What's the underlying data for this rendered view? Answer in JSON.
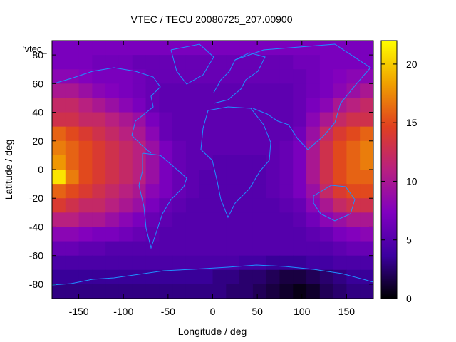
{
  "chart_data": {
    "type": "heatmap",
    "title": "VTEC / TECU 20080725_207.00900",
    "xlabel": "Longitude / deg",
    "ylabel": "Latitude / deg",
    "xlim": [
      -180,
      180
    ],
    "ylim": [
      -90,
      90
    ],
    "x_ticks": [
      -150,
      -100,
      -50,
      0,
      50,
      100,
      150
    ],
    "y_ticks": [
      -80,
      -60,
      -40,
      -20,
      0,
      20,
      40,
      60,
      80
    ],
    "x_tick_labels": [
      "-150",
      "-100",
      "-50",
      "0",
      "50",
      "100",
      "150"
    ],
    "y_tick_labels": [
      "-80",
      "-60",
      "-40",
      "-20",
      "0",
      "20",
      "40",
      "60",
      "80"
    ],
    "colorbar": {
      "range": [
        0,
        22
      ],
      "ticks": [
        0,
        5,
        10,
        15,
        20
      ],
      "tick_labels": [
        "0",
        "5",
        "10",
        "15",
        "20"
      ],
      "palette": [
        "#000000",
        "#3c00a0",
        "#8000c0",
        "#b82080",
        "#e04020",
        "#f0a000",
        "#ffff00"
      ]
    },
    "legend": {
      "entries": [
        "'vtec_"
      ],
      "placement": "top-left"
    },
    "grid": false,
    "overlay": "coastlines",
    "coastline_color": "#1e90ff",
    "lat_rows": [
      85,
      75,
      65,
      55,
      45,
      35,
      25,
      15,
      5,
      -5,
      -15,
      -25,
      -35,
      -45,
      -55,
      -65,
      -75,
      -85
    ],
    "lon_cols": [
      -172.5,
      -157.5,
      -142.5,
      -127.5,
      -112.5,
      -97.5,
      -82.5,
      -67.5,
      -52.5,
      -37.5,
      -22.5,
      -7.5,
      7.5,
      22.5,
      37.5,
      52.5,
      67.5,
      82.5,
      97.5,
      112.5,
      127.5,
      142.5,
      157.5,
      172.5
    ],
    "values": [
      [
        7,
        7,
        7,
        7,
        7,
        7,
        7,
        7,
        7,
        7,
        7,
        7,
        7,
        7,
        7,
        7,
        7,
        7,
        7,
        7,
        7,
        7,
        7,
        7
      ],
      [
        7,
        7,
        7,
        6.5,
        6.5,
        6.5,
        6,
        6,
        6,
        6,
        6,
        6,
        6,
        6,
        6,
        6,
        6,
        6,
        6.5,
        6.5,
        7,
        7,
        7,
        7
      ],
      [
        8,
        8,
        7.5,
        7,
        7,
        7,
        6.5,
        6,
        6,
        6,
        6,
        6,
        6,
        6,
        6,
        6,
        6,
        6,
        6,
        6.5,
        7,
        7.5,
        8,
        8
      ],
      [
        10,
        10,
        9,
        8,
        7.5,
        7,
        6.5,
        6,
        5.5,
        5.5,
        5.5,
        5.5,
        5.5,
        5.5,
        5.5,
        5.5,
        5.5,
        5.5,
        6,
        6.5,
        7,
        8,
        9,
        10
      ],
      [
        12,
        12,
        11,
        10,
        9,
        8,
        7,
        6,
        5.5,
        5.5,
        5.5,
        5.5,
        5.5,
        5.5,
        5.5,
        5.5,
        5.5,
        5.5,
        6,
        7,
        8,
        10,
        11,
        12
      ],
      [
        13,
        13,
        12,
        12,
        11,
        10,
        9,
        7,
        6,
        5.5,
        5.5,
        5.5,
        5.5,
        5.5,
        5.5,
        5.5,
        5.5,
        5.5,
        6,
        8,
        10,
        12,
        13,
        13
      ],
      [
        16,
        15,
        14,
        13,
        12,
        11,
        10,
        8,
        6,
        5.5,
        5.5,
        5.5,
        5.5,
        5.5,
        5.5,
        5.5,
        5.5,
        5.5,
        6.5,
        9,
        12,
        14,
        15,
        16
      ],
      [
        17,
        16,
        15,
        14,
        13,
        12,
        11,
        9,
        7,
        6,
        5.5,
        5.5,
        5.5,
        5.5,
        5.5,
        5.5,
        5.5,
        6,
        7,
        10,
        13,
        15,
        16,
        17
      ],
      [
        18,
        16,
        15,
        14,
        13,
        12,
        11,
        9,
        7,
        6,
        5.5,
        5.5,
        5,
        5,
        5,
        5,
        5.5,
        6,
        7,
        10,
        13,
        15,
        16,
        17
      ],
      [
        21,
        17,
        15,
        14,
        13,
        12,
        11,
        9,
        7,
        6,
        5.5,
        5,
        5,
        5,
        5,
        5,
        5.5,
        6,
        7,
        10,
        13,
        15,
        16,
        16
      ],
      [
        16,
        15,
        14,
        13,
        12,
        11,
        10,
        8,
        7,
        6,
        5.5,
        5,
        5,
        5,
        5,
        5,
        5.5,
        6,
        7,
        9,
        12,
        14,
        15,
        15
      ],
      [
        14,
        13,
        12,
        12,
        11,
        10,
        9,
        7,
        6,
        5.5,
        5,
        5,
        5,
        5,
        5,
        5,
        5,
        5.5,
        6,
        8,
        10,
        12,
        13,
        13
      ],
      [
        11,
        11,
        10,
        10,
        9,
        8,
        7,
        6,
        5.5,
        5,
        5,
        5,
        5,
        5,
        5,
        5,
        5,
        5,
        5.5,
        6.5,
        8,
        9,
        10,
        10
      ],
      [
        8,
        8,
        7.5,
        7,
        7,
        6.5,
        6,
        5.5,
        5,
        5,
        5,
        5,
        5,
        5,
        5,
        5,
        5,
        5,
        5,
        5.5,
        6,
        7,
        7.5,
        8
      ],
      [
        6,
        6,
        5.5,
        5.5,
        5,
        5,
        5,
        5,
        5,
        5,
        5,
        5,
        5,
        5,
        5,
        5,
        5,
        5,
        5,
        5,
        5,
        5.5,
        6,
        6
      ],
      [
        4.5,
        4.5,
        4.5,
        4.5,
        4.5,
        4.5,
        4.5,
        4.5,
        4.5,
        4.5,
        4.5,
        4.5,
        4.5,
        4.5,
        4,
        4,
        3.5,
        3.5,
        3.5,
        4,
        4,
        4.5,
        4.5,
        4.5
      ],
      [
        3.5,
        3.5,
        3.5,
        3.5,
        3.5,
        3.5,
        3.5,
        3.5,
        3.5,
        3.5,
        3.5,
        3.5,
        3,
        3,
        2.5,
        2.5,
        2,
        1.5,
        1.5,
        2,
        2.5,
        3,
        3.5,
        3.5
      ],
      [
        3,
        3,
        3,
        3,
        3,
        3,
        3,
        3,
        3,
        3,
        3,
        3,
        3,
        2.5,
        2.5,
        2,
        1.5,
        1,
        0.5,
        1,
        2,
        2.5,
        3,
        3
      ]
    ]
  }
}
